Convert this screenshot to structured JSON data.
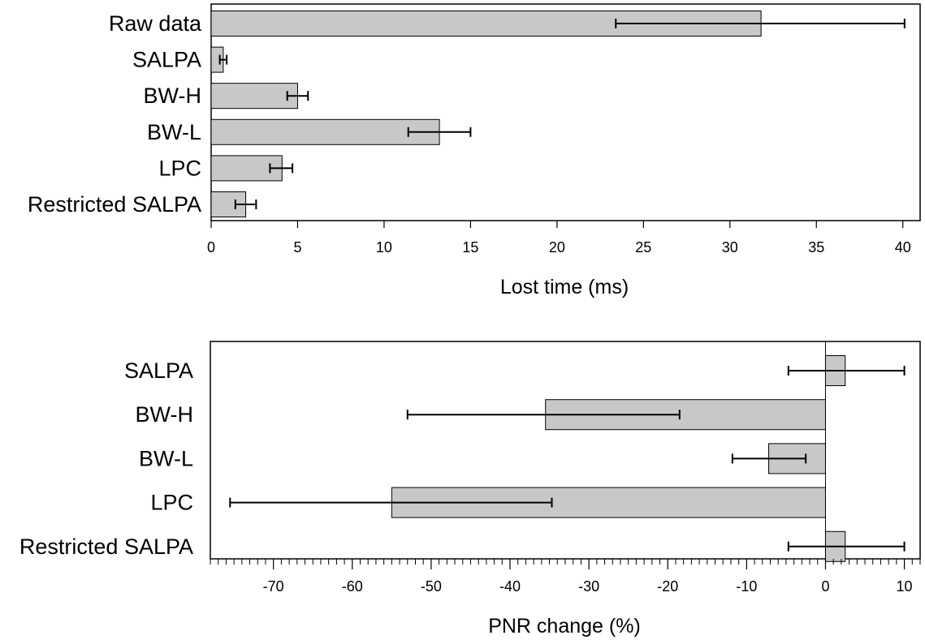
{
  "chart_data": [
    {
      "type": "bar",
      "orientation": "horizontal",
      "title": "",
      "xlabel": "Lost time (ms)",
      "ylabel": "",
      "xlim": [
        0,
        41
      ],
      "xticks": [
        "0",
        "5",
        "10",
        "15",
        "20",
        "25",
        "30",
        "35",
        "40"
      ],
      "grid": false,
      "bar_color": "#c8c8c8",
      "categories": [
        "Raw data",
        "SALPA",
        "BW-H",
        "BW-L",
        "LPC",
        "Restricted SALPA"
      ],
      "values": [
        31.8,
        0.7,
        5.0,
        13.2,
        4.1,
        2.0
      ],
      "error": [
        [
          23.4,
          40.1
        ],
        [
          0.5,
          0.9
        ],
        [
          4.4,
          5.6
        ],
        [
          11.4,
          15.0
        ],
        [
          3.4,
          4.7
        ],
        [
          1.4,
          2.6
        ]
      ]
    },
    {
      "type": "bar",
      "orientation": "horizontal",
      "title": "",
      "xlabel": "PNR change (%)",
      "ylabel": "",
      "xlim": [
        -78,
        12
      ],
      "xticks": [
        "-70",
        "-60",
        "-50",
        "-40",
        "-30",
        "-20",
        "-10",
        "0",
        "10"
      ],
      "minor_tick_step": 1,
      "grid": false,
      "bar_color": "#c8c8c8",
      "categories": [
        "SALPA",
        "BW-H",
        "BW-L",
        "LPC",
        "Restricted SALPA"
      ],
      "values": [
        2.5,
        -35.5,
        -7.2,
        -55.0,
        2.5
      ],
      "error": [
        [
          -4.7,
          10.0
        ],
        [
          -53.0,
          -18.5
        ],
        [
          -11.8,
          -2.5
        ],
        [
          -75.5,
          -34.7
        ],
        [
          -4.7,
          10.0
        ]
      ]
    }
  ]
}
